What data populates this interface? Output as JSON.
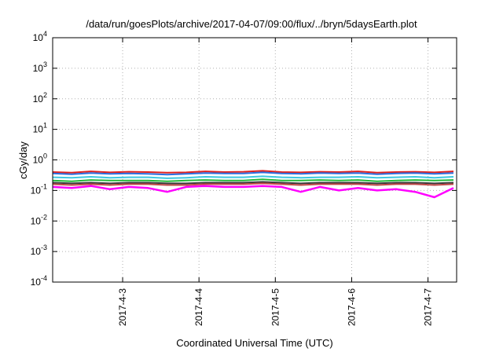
{
  "chart_data": {
    "type": "line",
    "title": "/data/run/goesPlots/archive/2017-04-07/09:00/flux/../bryn/5daysEarth.plot",
    "xlabel": "Coordinated Universal Time (UTC)",
    "ylabel": "cGy/day",
    "yscale": "log",
    "ylim": [
      0.0001,
      10000
    ],
    "xlim": [
      "2017-04-02T02:00",
      "2017-04-07T09:00"
    ],
    "grid": true,
    "legend": "none",
    "y_ticks": [
      {
        "base": "10",
        "exp": "-4",
        "value": 0.0001
      },
      {
        "base": "10",
        "exp": "-3",
        "value": 0.001
      },
      {
        "base": "10",
        "exp": "-2",
        "value": 0.01
      },
      {
        "base": "10",
        "exp": "-1",
        "value": 0.1
      },
      {
        "base": "10",
        "exp": "0",
        "value": 1
      },
      {
        "base": "10",
        "exp": "1",
        "value": 10
      },
      {
        "base": "10",
        "exp": "2",
        "value": 100
      },
      {
        "base": "10",
        "exp": "3",
        "value": 1000
      },
      {
        "base": "10",
        "exp": "4",
        "value": 10000
      }
    ],
    "x_ticks": [
      {
        "label": "2017-4-3",
        "value": "2017-04-03T00:00"
      },
      {
        "label": "2017-4-4",
        "value": "2017-04-04T00:00"
      },
      {
        "label": "2017-4-5",
        "value": "2017-04-05T00:00"
      },
      {
        "label": "2017-4-6",
        "value": "2017-04-06T00:00"
      },
      {
        "label": "2017-4-7",
        "value": "2017-04-07T00:00"
      }
    ],
    "x": [
      "2017-04-02T02:00",
      "2017-04-02T08:00",
      "2017-04-02T14:00",
      "2017-04-02T20:00",
      "2017-04-03T02:00",
      "2017-04-03T08:00",
      "2017-04-03T14:00",
      "2017-04-03T20:00",
      "2017-04-04T02:00",
      "2017-04-04T08:00",
      "2017-04-04T14:00",
      "2017-04-04T20:00",
      "2017-04-05T02:00",
      "2017-04-05T08:00",
      "2017-04-05T14:00",
      "2017-04-05T20:00",
      "2017-04-06T02:00",
      "2017-04-06T08:00",
      "2017-04-06T14:00",
      "2017-04-06T20:00",
      "2017-04-07T02:00",
      "2017-04-07T08:00"
    ],
    "series": [
      {
        "color": "#e0201e",
        "values": [
          0.4,
          0.38,
          0.42,
          0.39,
          0.41,
          0.4,
          0.38,
          0.39,
          0.42,
          0.4,
          0.41,
          0.44,
          0.4,
          0.39,
          0.41,
          0.4,
          0.42,
          0.38,
          0.4,
          0.41,
          0.39,
          0.42
        ]
      },
      {
        "color": "#2a6fe0",
        "values": [
          0.36,
          0.34,
          0.37,
          0.35,
          0.36,
          0.35,
          0.33,
          0.35,
          0.37,
          0.36,
          0.36,
          0.39,
          0.36,
          0.35,
          0.37,
          0.36,
          0.37,
          0.34,
          0.36,
          0.37,
          0.35,
          0.37
        ]
      },
      {
        "color": "#3cc8e0",
        "values": [
          0.27,
          0.26,
          0.28,
          0.26,
          0.27,
          0.27,
          0.25,
          0.26,
          0.28,
          0.27,
          0.27,
          0.29,
          0.27,
          0.26,
          0.27,
          0.27,
          0.28,
          0.26,
          0.27,
          0.28,
          0.26,
          0.28
        ]
      },
      {
        "color": "#22b838",
        "values": [
          0.21,
          0.2,
          0.22,
          0.21,
          0.21,
          0.21,
          0.2,
          0.21,
          0.22,
          0.21,
          0.21,
          0.23,
          0.21,
          0.21,
          0.22,
          0.21,
          0.22,
          0.2,
          0.21,
          0.22,
          0.21,
          0.22
        ]
      },
      {
        "color": "#3a3a3a",
        "values": [
          0.18,
          0.17,
          0.18,
          0.17,
          0.18,
          0.18,
          0.17,
          0.17,
          0.18,
          0.18,
          0.18,
          0.19,
          0.18,
          0.17,
          0.18,
          0.18,
          0.18,
          0.17,
          0.18,
          0.18,
          0.17,
          0.18
        ]
      },
      {
        "color": "#c04848",
        "values": [
          0.16,
          0.15,
          0.16,
          0.15,
          0.16,
          0.16,
          0.15,
          0.15,
          0.16,
          0.16,
          0.16,
          0.17,
          0.16,
          0.15,
          0.16,
          0.16,
          0.16,
          0.15,
          0.16,
          0.16,
          0.15,
          0.16
        ]
      },
      {
        "color": "#ff00ff",
        "values": [
          0.13,
          0.12,
          0.14,
          0.11,
          0.13,
          0.12,
          0.09,
          0.13,
          0.14,
          0.13,
          0.13,
          0.14,
          0.13,
          0.09,
          0.13,
          0.1,
          0.12,
          0.1,
          0.11,
          0.09,
          0.06,
          0.12
        ]
      }
    ]
  }
}
